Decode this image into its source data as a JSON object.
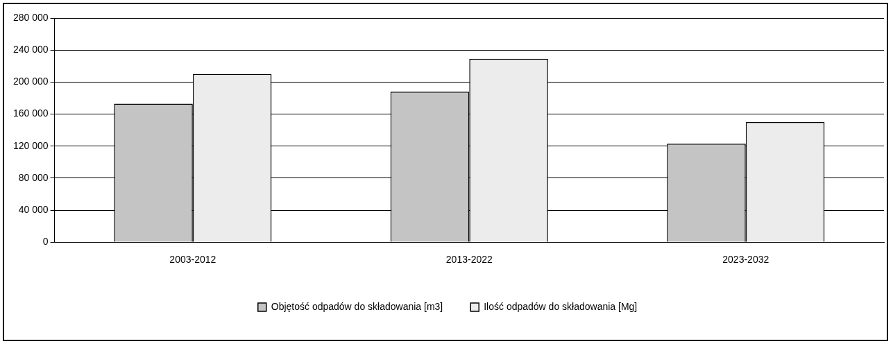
{
  "chart_data": {
    "type": "bar",
    "categories": [
      "2003-2012",
      "2013-2022",
      "2023-2032"
    ],
    "series": [
      {
        "name": "Objętość odpadów do składowania [m3]",
        "color": "#c4c4c4",
        "values": [
          173000,
          188000,
          123000
        ]
      },
      {
        "name": "Ilość odpadów do składowania [Mg]",
        "color": "#ececec",
        "values": [
          210000,
          229000,
          150000
        ]
      }
    ],
    "ylim": [
      0,
      280000
    ],
    "yticks": [
      {
        "value": 0,
        "label": "0"
      },
      {
        "value": 40000,
        "label": "40 000"
      },
      {
        "value": 80000,
        "label": "80 000"
      },
      {
        "value": 120000,
        "label": "120 000"
      },
      {
        "value": 160000,
        "label": "160 000"
      },
      {
        "value": 200000,
        "label": "200 000"
      },
      {
        "value": 240000,
        "label": "240 000"
      },
      {
        "value": 280000,
        "label": "280 000"
      }
    ],
    "grid": "y",
    "legend": "bottom"
  }
}
